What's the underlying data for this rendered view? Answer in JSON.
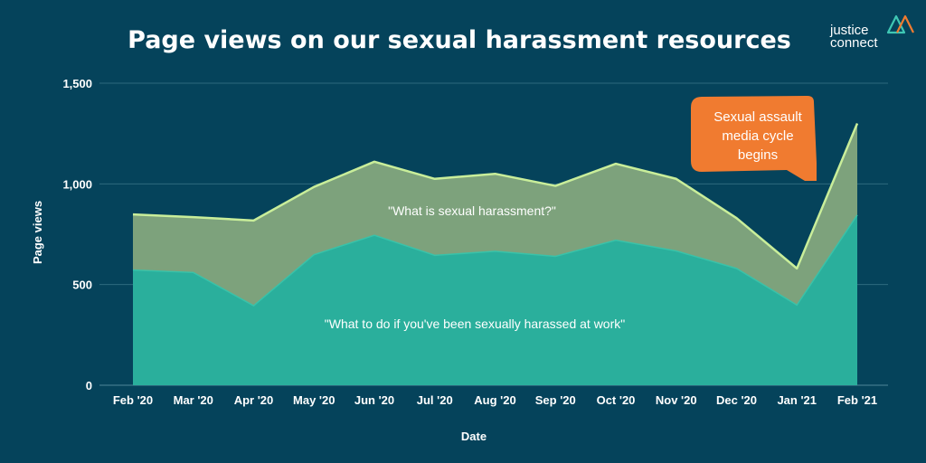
{
  "logo": {
    "line1": "justice",
    "line2": "connect"
  },
  "colors": {
    "background": "#05435b",
    "upper_area": "#7da27c",
    "upper_line": "#c9ee9a",
    "lower_area": "#2aaf9c",
    "lower_line": "#39c2a9",
    "gridline": "#2d6a7e",
    "callout": "#f07b30",
    "logo_mark_teal": "#3fc7b4",
    "logo_mark_orange": "#f07b30"
  },
  "chart_data": {
    "type": "area",
    "title": "Page views on our sexual harassment resources",
    "xlabel": "Date",
    "ylabel": "Page views",
    "ylim": [
      0,
      1500
    ],
    "yticks": [
      0,
      500,
      1000,
      1500
    ],
    "ytick_labels": [
      "0",
      "500",
      "1,000",
      "1,500"
    ],
    "grid": true,
    "categories": [
      "Feb '20",
      "Mar '20",
      "Apr '20",
      "May '20",
      "Jun '20",
      "Jul '20",
      "Aug '20",
      "Sep '20",
      "Oct '20",
      "Nov '20",
      "Dec '20",
      "Jan '21",
      "Feb '21"
    ],
    "series": [
      {
        "name": "\"What is sexual harassment?\"",
        "values": [
          848,
          835,
          818,
          985,
          1110,
          1025,
          1050,
          990,
          1100,
          1025,
          830,
          580,
          1300
        ]
      },
      {
        "name": "\"What to do if you've been sexually harassed at work\"",
        "values": [
          572,
          560,
          395,
          648,
          745,
          645,
          665,
          640,
          720,
          667,
          580,
          398,
          845
        ]
      }
    ],
    "annotation": {
      "text_lines": [
        "Sexual assault",
        "media cycle",
        "begins"
      ],
      "category": "Jan '21"
    }
  }
}
